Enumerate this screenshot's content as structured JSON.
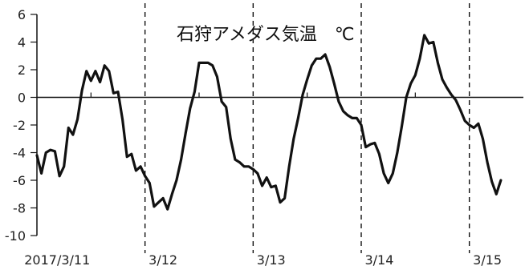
{
  "chart_data": {
    "type": "line",
    "title": "石狩アメダス気温　℃",
    "xlabel": "",
    "ylabel": "",
    "ylim": [
      -10,
      6
    ],
    "xlim": [
      0,
      108
    ],
    "yticks": [
      6,
      4,
      2,
      0,
      -2,
      -4,
      -6,
      -8,
      -10
    ],
    "date_labels": [
      {
        "text": "2017/3/11",
        "x": 4.5
      },
      {
        "text": "3/12",
        "x": 28
      },
      {
        "text": "3/13",
        "x": 52
      },
      {
        "text": "3/14",
        "x": 76
      },
      {
        "text": "3/15",
        "x": 100
      }
    ],
    "day_dividers": [
      24,
      48,
      72,
      96
    ],
    "zero_line_ticks": [
      12,
      36,
      60,
      84
    ],
    "grid": false,
    "line_color": "#111111",
    "series": [
      {
        "values": [
          [
            0,
            -4.2
          ],
          [
            1,
            -5.5
          ],
          [
            2,
            -4.0
          ],
          [
            3,
            -3.8
          ],
          [
            4,
            -3.9
          ],
          [
            5,
            -5.7
          ],
          [
            6,
            -5.0
          ],
          [
            7,
            -2.2
          ],
          [
            8,
            -2.7
          ],
          [
            9,
            -1.6
          ],
          [
            10,
            0.5
          ],
          [
            11,
            1.9
          ],
          [
            12,
            1.2
          ],
          [
            13,
            1.9
          ],
          [
            14,
            1.1
          ],
          [
            15,
            2.3
          ],
          [
            16,
            1.9
          ],
          [
            17,
            0.3
          ],
          [
            18,
            0.4
          ],
          [
            19,
            -1.6
          ],
          [
            20,
            -4.3
          ],
          [
            21,
            -4.1
          ],
          [
            22,
            -5.3
          ],
          [
            23,
            -5.0
          ],
          [
            24,
            -5.7
          ],
          [
            25,
            -6.2
          ],
          [
            26,
            -7.9
          ],
          [
            27,
            -7.6
          ],
          [
            28,
            -7.3
          ],
          [
            29,
            -8.1
          ],
          [
            30,
            -7.0
          ],
          [
            31,
            -6.0
          ],
          [
            32,
            -4.5
          ],
          [
            33,
            -2.6
          ],
          [
            34,
            -0.8
          ],
          [
            35,
            0.4
          ],
          [
            36,
            2.5
          ],
          [
            37,
            2.5
          ],
          [
            38,
            2.5
          ],
          [
            39,
            2.3
          ],
          [
            40,
            1.5
          ],
          [
            41,
            -0.3
          ],
          [
            42,
            -0.7
          ],
          [
            43,
            -3.0
          ],
          [
            44,
            -4.5
          ],
          [
            45,
            -4.7
          ],
          [
            46,
            -5.0
          ],
          [
            47,
            -5.0
          ],
          [
            48,
            -5.2
          ],
          [
            49,
            -5.5
          ],
          [
            50,
            -6.4
          ],
          [
            51,
            -5.8
          ],
          [
            52,
            -6.5
          ],
          [
            53,
            -6.4
          ],
          [
            54,
            -7.6
          ],
          [
            55,
            -7.3
          ],
          [
            56,
            -5.0
          ],
          [
            57,
            -3.0
          ],
          [
            58,
            -1.5
          ],
          [
            59,
            0.2
          ],
          [
            60,
            1.3
          ],
          [
            61,
            2.3
          ],
          [
            62,
            2.8
          ],
          [
            63,
            2.8
          ],
          [
            64,
            3.1
          ],
          [
            65,
            2.2
          ],
          [
            66,
            1.0
          ],
          [
            67,
            -0.3
          ],
          [
            68,
            -1.0
          ],
          [
            69,
            -1.3
          ],
          [
            70,
            -1.5
          ],
          [
            71,
            -1.5
          ],
          [
            72,
            -2.0
          ],
          [
            73,
            -3.6
          ],
          [
            74,
            -3.4
          ],
          [
            75,
            -3.3
          ],
          [
            76,
            -4.1
          ],
          [
            77,
            -5.5
          ],
          [
            78,
            -6.2
          ],
          [
            79,
            -5.5
          ],
          [
            80,
            -4.0
          ],
          [
            81,
            -2.1
          ],
          [
            82,
            0.0
          ],
          [
            83,
            1.0
          ],
          [
            84,
            1.6
          ],
          [
            85,
            2.8
          ],
          [
            86,
            4.5
          ],
          [
            87,
            3.9
          ],
          [
            88,
            4.0
          ],
          [
            89,
            2.5
          ],
          [
            90,
            1.3
          ],
          [
            91,
            0.7
          ],
          [
            92,
            0.2
          ],
          [
            93,
            -0.2
          ],
          [
            94,
            -0.9
          ],
          [
            95,
            -1.7
          ],
          [
            96,
            -2.0
          ],
          [
            97,
            -2.2
          ],
          [
            98,
            -1.9
          ],
          [
            99,
            -3.0
          ],
          [
            100,
            -4.7
          ],
          [
            101,
            -6.1
          ],
          [
            102,
            -7.0
          ],
          [
            103,
            -6.0
          ]
        ]
      }
    ]
  }
}
